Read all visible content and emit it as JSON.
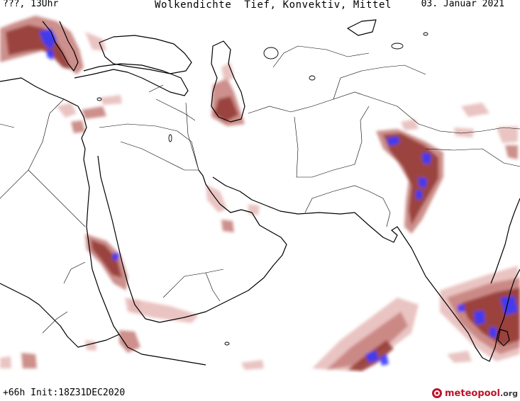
{
  "header": {
    "left": "???, 13Uhr",
    "center": "Wolkendichte  Tief, Konvektiv, Mittel",
    "right": "03. Januar 2021"
  },
  "footer": {
    "run": "+66h Init:18Z31DEC2020"
  },
  "logo": {
    "name": "meteopool",
    "tld": ".org"
  },
  "colors": {
    "cloud_light": "#e2b0ad",
    "cloud_medium": "#c8847f",
    "cloud_dense": "#963c36",
    "cloud_max": "#3a3aff",
    "coast": "#000000",
    "border": "#000000"
  }
}
